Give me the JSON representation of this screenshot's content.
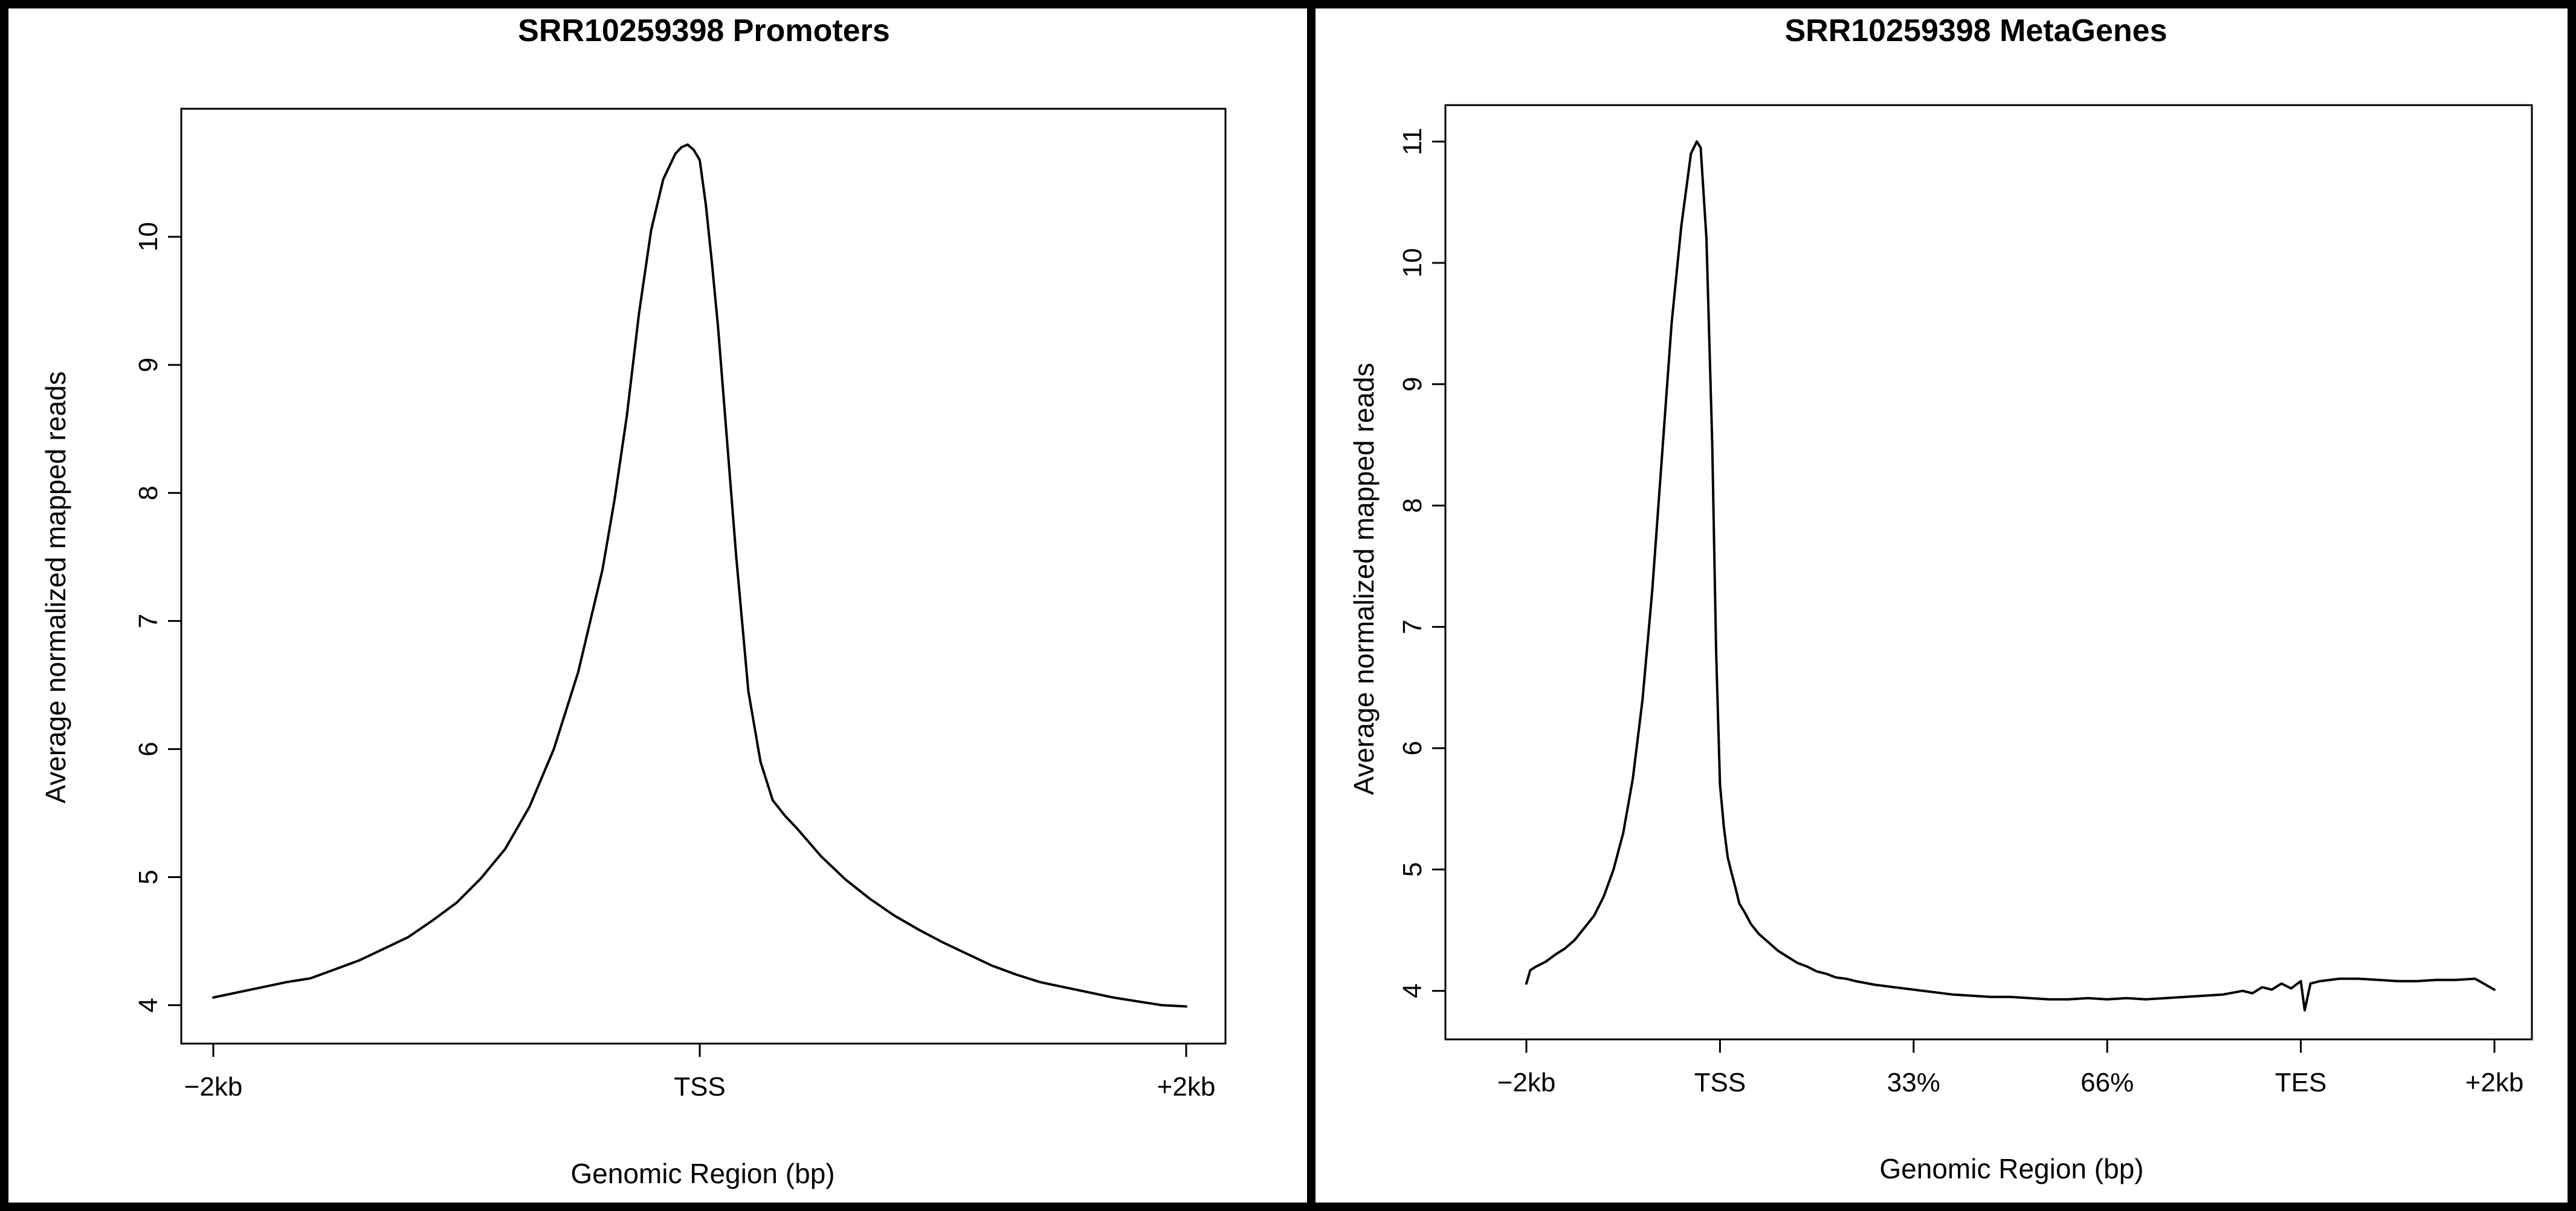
{
  "chart_data": [
    {
      "type": "line",
      "title": "SRR10259398 Promoters",
      "xlabel": "Genomic Region (bp)",
      "ylabel": "Average normalized mapped reads",
      "x_tick_labels": [
        "−2kb",
        "TSS",
        "+2kb"
      ],
      "y_ticks": [
        4,
        5,
        6,
        7,
        8,
        9,
        10
      ],
      "xlim": [
        -2000,
        2000
      ],
      "ylim": [
        3.7,
        11.0
      ],
      "grid": false,
      "legend": "none",
      "series": [
        {
          "x": [
            -2000,
            -1900,
            -1800,
            -1700,
            -1600,
            -1500,
            -1400,
            -1300,
            -1200,
            -1100,
            -1000,
            -900,
            -800,
            -700,
            -600,
            -500,
            -400,
            -350,
            -300,
            -250,
            -200,
            -150,
            -100,
            -75,
            -50,
            -25,
            0,
            25,
            50,
            75,
            100,
            150,
            200,
            250,
            300,
            350,
            400,
            500,
            600,
            700,
            800,
            900,
            1000,
            1100,
            1200,
            1300,
            1400,
            1500,
            1600,
            1700,
            1800,
            1900,
            2000
          ],
          "y": [
            4.06,
            4.1,
            4.14,
            4.18,
            4.21,
            4.28,
            4.35,
            4.44,
            4.53,
            4.66,
            4.8,
            4.99,
            5.22,
            5.55,
            6.0,
            6.6,
            7.4,
            7.95,
            8.6,
            9.4,
            10.05,
            10.45,
            10.65,
            10.7,
            10.72,
            10.68,
            10.6,
            10.25,
            9.8,
            9.3,
            8.7,
            7.5,
            6.45,
            5.9,
            5.6,
            5.48,
            5.38,
            5.16,
            4.98,
            4.83,
            4.7,
            4.59,
            4.49,
            4.4,
            4.31,
            4.24,
            4.18,
            4.14,
            4.1,
            4.06,
            4.03,
            4.0,
            3.99
          ]
        }
      ]
    },
    {
      "type": "line",
      "title": "SRR10259398 MetaGenes",
      "xlabel": "Genomic Region (bp)",
      "ylabel": "Average normalized mapped reads",
      "x_tick_labels": [
        "−2kb",
        "TSS",
        "33%",
        "66%",
        "TES",
        "+2kb"
      ],
      "x_tick_positions": [
        0,
        1,
        2,
        3,
        4,
        5
      ],
      "y_ticks": [
        4,
        5,
        6,
        7,
        8,
        9,
        10,
        11
      ],
      "xlim": [
        0,
        5
      ],
      "ylim": [
        3.6,
        11.3
      ],
      "grid": false,
      "legend": "none",
      "series": [
        {
          "x": [
            0.0,
            0.02,
            0.05,
            0.1,
            0.15,
            0.2,
            0.25,
            0.3,
            0.35,
            0.4,
            0.45,
            0.5,
            0.55,
            0.6,
            0.65,
            0.7,
            0.75,
            0.8,
            0.85,
            0.88,
            0.9,
            0.93,
            0.96,
            0.98,
            1.0,
            1.02,
            1.04,
            1.06,
            1.08,
            1.1,
            1.13,
            1.16,
            1.2,
            1.25,
            1.3,
            1.35,
            1.4,
            1.45,
            1.5,
            1.55,
            1.6,
            1.65,
            1.7,
            1.8,
            1.9,
            2.0,
            2.1,
            2.2,
            2.3,
            2.4,
            2.5,
            2.6,
            2.7,
            2.8,
            2.9,
            3.0,
            3.1,
            3.2,
            3.3,
            3.4,
            3.5,
            3.6,
            3.7,
            3.75,
            3.8,
            3.85,
            3.9,
            3.95,
            4.0,
            4.02,
            4.05,
            4.1,
            4.2,
            4.3,
            4.4,
            4.5,
            4.6,
            4.7,
            4.8,
            4.9,
            5.0
          ],
          "y": [
            4.06,
            4.17,
            4.2,
            4.24,
            4.3,
            4.35,
            4.42,
            4.52,
            4.62,
            4.78,
            5.0,
            5.3,
            5.75,
            6.4,
            7.3,
            8.4,
            9.5,
            10.3,
            10.9,
            11.0,
            10.95,
            10.2,
            8.5,
            6.8,
            5.7,
            5.35,
            5.1,
            4.97,
            4.85,
            4.72,
            4.64,
            4.55,
            4.47,
            4.4,
            4.33,
            4.28,
            4.23,
            4.2,
            4.16,
            4.14,
            4.11,
            4.1,
            4.08,
            4.05,
            4.03,
            4.01,
            3.99,
            3.97,
            3.96,
            3.95,
            3.95,
            3.94,
            3.93,
            3.93,
            3.94,
            3.93,
            3.94,
            3.93,
            3.94,
            3.95,
            3.96,
            3.97,
            4.0,
            3.98,
            4.03,
            4.01,
            4.06,
            4.02,
            4.08,
            3.84,
            4.06,
            4.08,
            4.1,
            4.1,
            4.09,
            4.08,
            4.08,
            4.09,
            4.09,
            4.1,
            4.01
          ]
        }
      ]
    }
  ]
}
